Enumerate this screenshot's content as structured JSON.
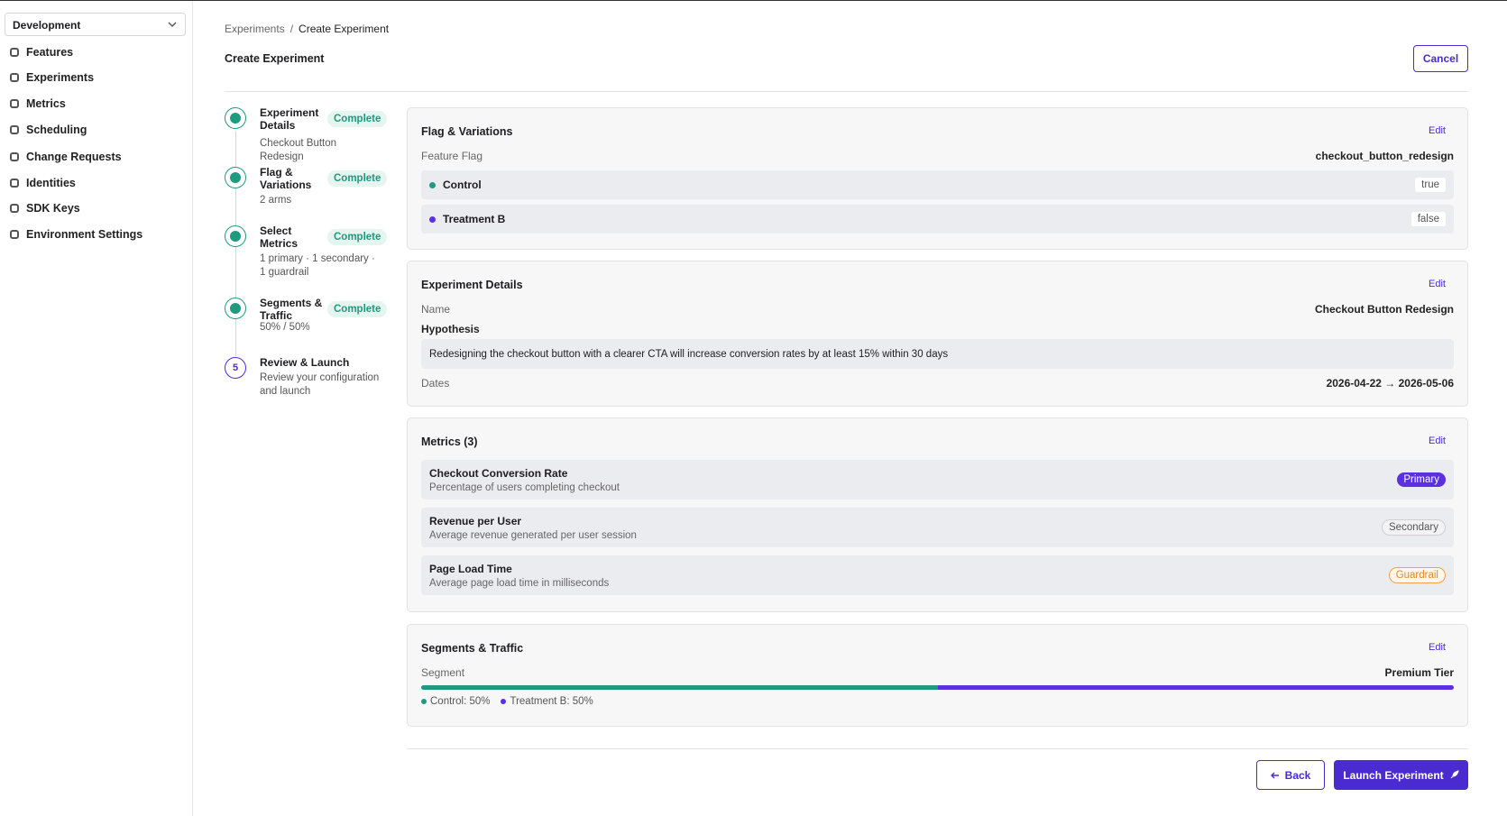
{
  "sidebar": {
    "environment": "Development",
    "nav": [
      "Features",
      "Experiments",
      "Metrics",
      "Scheduling",
      "Change Requests",
      "Identities",
      "SDK Keys",
      "Environment Settings"
    ]
  },
  "header": {
    "breadcrumb": [
      "Experiments",
      "Create Experiment"
    ],
    "breadcrumb_separator": "/",
    "title": "Create Experiment",
    "cancel": "Cancel"
  },
  "steps": [
    {
      "title": "Experiment Details",
      "status": "Complete",
      "detail": "Checkout Button Redesign"
    },
    {
      "title": "Flag & Variations",
      "status": "Complete",
      "detail": "2 arms"
    },
    {
      "title": "Select Metrics",
      "status": "Complete",
      "detail": "1 primary · 1 secondary · 1 guardrail"
    },
    {
      "title": "Segments & Traffic",
      "status": "Complete",
      "detail": "50% / 50%"
    },
    {
      "number": 5,
      "title": "Review & Launch",
      "detail": "Review your configuration and launch"
    }
  ],
  "flag": {
    "title": "Flag & Variations",
    "edit": "Edit",
    "label": "Feature Flag",
    "value": "checkout_button_redesign",
    "variations": [
      {
        "name": "Control",
        "value": "true"
      },
      {
        "name": "Treatment B",
        "value": "false"
      }
    ]
  },
  "details": {
    "title": "Experiment Details",
    "edit": "Edit",
    "name_label": "Name",
    "name": "Checkout Button Redesign",
    "hypothesis_label": "Hypothesis",
    "hypothesis": "Redesigning the checkout button with a clearer CTA will increase conversion rates by at least 15% within 30 days",
    "dates_label": "Dates",
    "dates": "2026-04-22 → 2026-05-06"
  },
  "metrics": {
    "title": "Metrics (3)",
    "edit": "Edit",
    "items": [
      {
        "name": "Checkout Conversion Rate",
        "description": "Percentage of users completing checkout",
        "role": "Primary"
      },
      {
        "name": "Revenue per User",
        "description": "Average revenue generated per user session",
        "role": "Secondary"
      },
      {
        "name": "Page Load Time",
        "description": "Average page load time in milliseconds",
        "role": "Guardrail"
      }
    ]
  },
  "segments": {
    "title": "Segments & Traffic",
    "edit": "Edit",
    "label": "Segment",
    "value": "Premium Tier",
    "legend": [
      "Control: 50%",
      "Treatment B: 50%"
    ]
  },
  "footer": {
    "back": "Back",
    "launch": "Launch Experiment"
  }
}
